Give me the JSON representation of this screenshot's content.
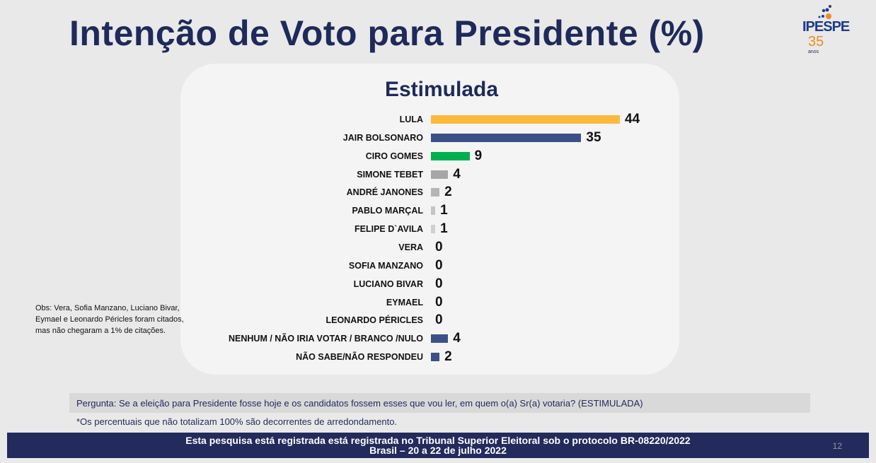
{
  "header": {
    "title": "Intenção de Voto para Presidente (%)",
    "logo": {
      "name": "IPESPE",
      "years": "35",
      "years_label": "anos"
    }
  },
  "chart_data": {
    "type": "bar",
    "orientation": "horizontal",
    "title": "Estimulada",
    "categories": [
      "LULA",
      "JAIR BOLSONARO",
      "CIRO GOMES",
      "SIMONE TEBET",
      "ANDRÉ JANONES",
      "PABLO MARÇAL",
      "FELIPE D`AVILA",
      "VERA",
      "SOFIA MANZANO",
      "LUCIANO BIVAR",
      "EYMAEL",
      "LEONARDO PÉRICLES",
      "NENHUM / NÃO IRIA VOTAR / BRANCO /NULO",
      "NÃO SABE/NÃO RESPONDEU"
    ],
    "values": [
      44,
      35,
      9,
      4,
      2,
      1,
      1,
      0,
      0,
      0,
      0,
      0,
      4,
      2
    ],
    "colors": [
      "#fdb93c",
      "#3c5088",
      "#00b050",
      "#a6a6a6",
      "#b5b5b5",
      "#c4c4c4",
      "#cfcfcf",
      "#cfcfcf",
      "#cfcfcf",
      "#cfcfcf",
      "#cfcfcf",
      "#cfcfcf",
      "#3c5088",
      "#3c5088"
    ],
    "xlim": [
      0,
      44
    ],
    "grid": false,
    "data_labels": true
  },
  "obs": "Obs: Vera, Sofia Manzano, Luciano Bivar, Eymael e Leonardo Péricles foram citados, mas não chegaram a 1% de citações.",
  "question": "Pergunta:  Se a eleição para Presidente fosse hoje e os candidatos fossem esses que vou ler, em quem o(a) Sr(a) votaria? (ESTIMULADA)",
  "note": "*Os percentuais que não totalizam 100% são decorrentes de arredondamento.",
  "footer": {
    "line1": "Esta pesquisa está registrada está registrada no Tribunal Superior Eleitoral sob o protocolo BR-08220/2022",
    "line2": "Brasil – 20 a 22 de julho 2022",
    "page": "12"
  }
}
